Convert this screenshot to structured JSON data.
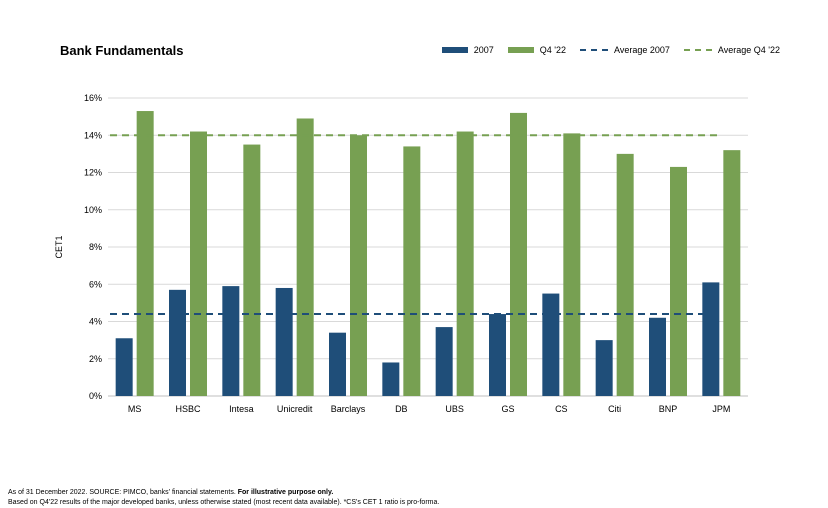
{
  "chart_data": {
    "type": "bar",
    "title": "Bank Fundamentals",
    "ylabel": "CET1",
    "xlabel": "",
    "ylim": [
      0,
      16
    ],
    "yticks": [
      "0%",
      "2%",
      "4%",
      "6%",
      "8%",
      "10%",
      "12%",
      "14%",
      "16%"
    ],
    "categories": [
      "MS",
      "HSBC",
      "Intesa",
      "Unicredit",
      "Barclays",
      "DB",
      "UBS",
      "GS",
      "CS",
      "Citi",
      "BNP",
      "JPM"
    ],
    "series": [
      {
        "name": "2007",
        "color": "#1f4e79",
        "values": [
          3.1,
          5.7,
          5.9,
          5.8,
          3.4,
          1.8,
          3.7,
          4.4,
          5.5,
          3.0,
          4.2,
          6.1
        ]
      },
      {
        "name": "Q4 '22",
        "color": "#77a052",
        "values": [
          15.3,
          14.2,
          13.5,
          14.9,
          14.0,
          13.4,
          14.2,
          15.2,
          14.1,
          13.0,
          12.3,
          13.2
        ]
      }
    ],
    "reference_lines": [
      {
        "name": "Average 2007",
        "value": 4.4,
        "color": "#1f4e79",
        "style": "dashed"
      },
      {
        "name": "Average Q4 '22",
        "value": 14.0,
        "color": "#77a052",
        "style": "dashed"
      }
    ],
    "grid": true,
    "legend_position": "top-right"
  },
  "footer": {
    "line1_prefix": "As of 31 December 2022. SOURCE: PIMCO, banks' financial statements. ",
    "line1_bold": "For illustrative purpose only.",
    "line2": "Based on Q4'22 results of the major developed banks, unless otherwise stated (most recent data available). *CS's CET 1 ratio is pro-forma."
  }
}
